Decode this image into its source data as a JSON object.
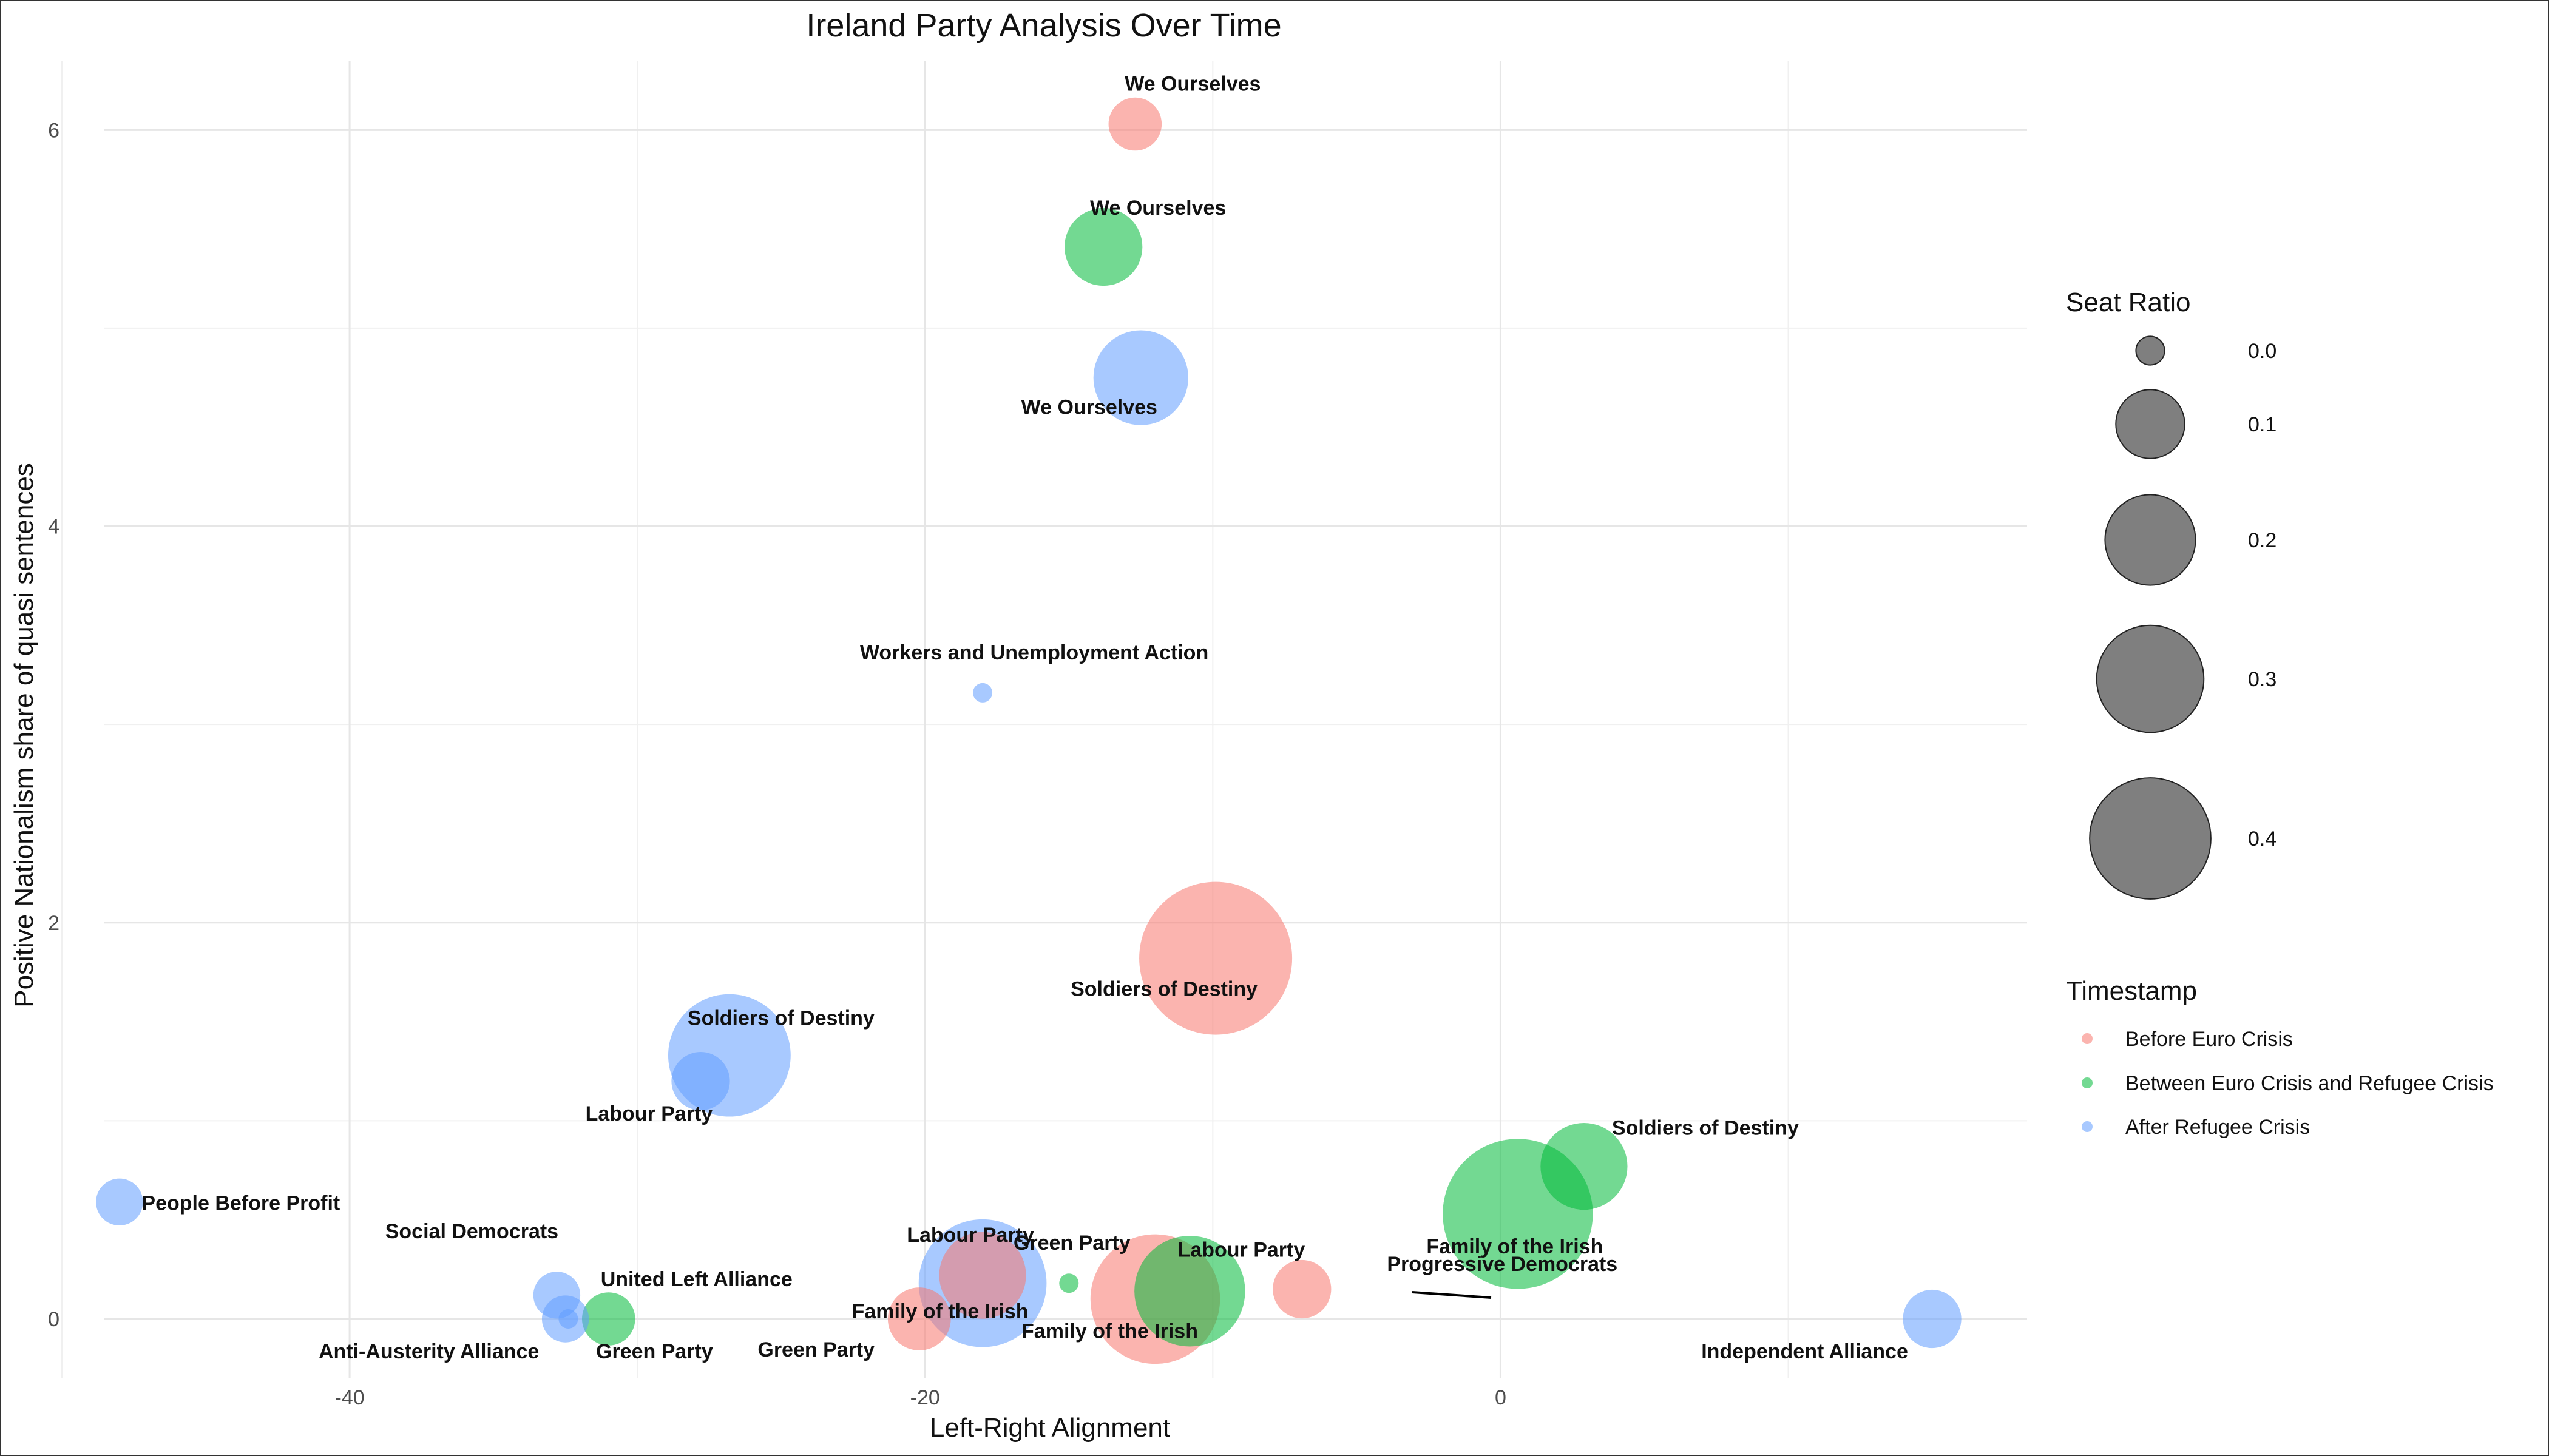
{
  "chart_data": {
    "type": "scatter",
    "title": "Ireland Party Analysis Over Time",
    "xlabel": "Left-Right Alignment",
    "ylabel": "Positive Nationalism share of quasi sentences",
    "xlim": [
      -50,
      18.3
    ],
    "ylim": [
      -0.3,
      6.35
    ],
    "x_ticks": [
      -40,
      -20,
      0
    ],
    "x_tick_labels": [
      "-40",
      "-20",
      "0"
    ],
    "y_ticks": [
      0,
      2,
      4,
      6
    ],
    "y_tick_labels": [
      "0",
      "2",
      "4",
      "6"
    ],
    "grid": true,
    "legend_position": "right",
    "size_legend": {
      "title": "Seat Ratio",
      "values": [
        0.0,
        0.1,
        0.2,
        0.3,
        0.4
      ],
      "labels": [
        "0.0",
        "0.1",
        "0.2",
        "0.3",
        "0.4"
      ]
    },
    "color_legend": {
      "title": "Timestamp",
      "entries": [
        {
          "name": "Before Euro Crisis",
          "color": "#F8766D"
        },
        {
          "name": "Between Euro Crisis and Refugee Crisis",
          "color": "#00BA38"
        },
        {
          "name": "After Refugee Crisis",
          "color": "#619CFF"
        }
      ]
    },
    "series": [
      {
        "name": "Before Euro Crisis",
        "color": "#F8766D",
        "points": [
          {
            "label": "We Ourselves",
            "x": -12.7,
            "y": 6.03,
            "seat_ratio": 0.03
          },
          {
            "label": "Soldiers of Destiny",
            "x": -9.9,
            "y": 1.82,
            "seat_ratio": 0.47
          },
          {
            "label": "Labour Party",
            "x": -18.0,
            "y": 0.22,
            "seat_ratio": 0.12
          },
          {
            "label": "Family of the Irish",
            "x": -12.0,
            "y": 0.1,
            "seat_ratio": 0.32
          },
          {
            "label": "Progressive Democrats",
            "x": -6.9,
            "y": 0.15,
            "seat_ratio": 0.04
          },
          {
            "label": "Green Party",
            "x": -20.2,
            "y": 0.0,
            "seat_ratio": 0.05
          }
        ]
      },
      {
        "name": "Between Euro Crisis and Refugee Crisis",
        "color": "#00BA38",
        "points": [
          {
            "label": "We Ourselves",
            "x": -13.8,
            "y": 5.41,
            "seat_ratio": 0.09
          },
          {
            "label": "Family of the Irish",
            "x": 0.6,
            "y": 0.53,
            "seat_ratio": 0.45
          },
          {
            "label": "Soldiers of Destiny",
            "x": 2.9,
            "y": 0.77,
            "seat_ratio": 0.12
          },
          {
            "label": "Labour Party",
            "x": -10.8,
            "y": 0.14,
            "seat_ratio": 0.22
          },
          {
            "label": "Green Party",
            "x": -15.0,
            "y": 0.18,
            "seat_ratio": 0.0
          },
          {
            "label": "United Left Alliance",
            "x": -31.0,
            "y": 0.0,
            "seat_ratio": 0.03
          }
        ]
      },
      {
        "name": "After Refugee Crisis",
        "color": "#619CFF",
        "points": [
          {
            "label": "We Ourselves",
            "x": -12.5,
            "y": 4.75,
            "seat_ratio": 0.15
          },
          {
            "label": "Workers and Unemployment Action",
            "x": -18.0,
            "y": 3.16,
            "seat_ratio": 0.0
          },
          {
            "label": "Soldiers of Destiny",
            "x": -26.8,
            "y": 1.33,
            "seat_ratio": 0.28
          },
          {
            "label": "Labour Party",
            "x": -27.8,
            "y": 1.2,
            "seat_ratio": 0.04
          },
          {
            "label": "People Before Profit",
            "x": -48.0,
            "y": 0.59,
            "seat_ratio": 0.02
          },
          {
            "label": "Family of the Irish",
            "x": -18.0,
            "y": 0.18,
            "seat_ratio": 0.31
          },
          {
            "label": "Social Democrats",
            "x": -32.8,
            "y": 0.12,
            "seat_ratio": 0.02
          },
          {
            "label": "Anti-Austerity Alliance",
            "x": -32.5,
            "y": 0.0,
            "seat_ratio": 0.02
          },
          {
            "label": "Green Party",
            "x": -32.4,
            "y": 0.0,
            "seat_ratio": 0.0
          },
          {
            "label": "Independent Alliance",
            "x": 15.0,
            "y": 0.0,
            "seat_ratio": 0.04
          }
        ]
      }
    ]
  }
}
